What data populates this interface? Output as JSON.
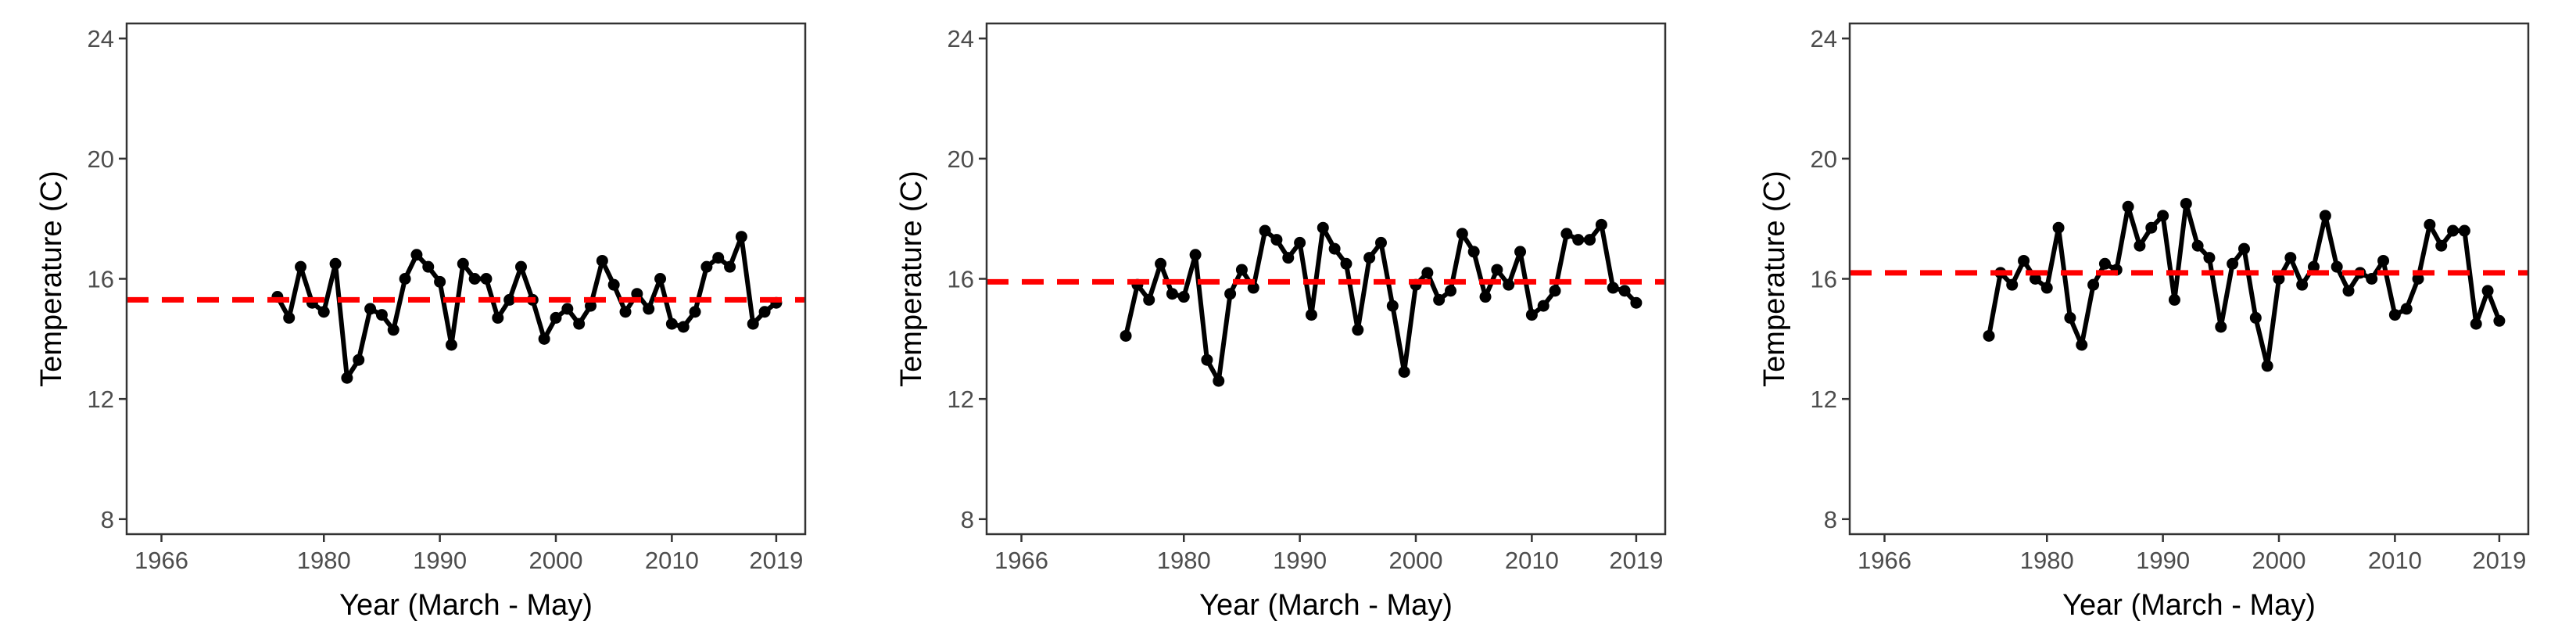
{
  "colors": {
    "line": "#000000",
    "points": "#000000",
    "mean_line": "#ff0000",
    "frame": "#333333",
    "ticks": "#333333",
    "tick_labels": "#4d4d4d",
    "background": "#ffffff"
  },
  "chart_data": [
    {
      "type": "line",
      "xlabel": "Year (March - May)",
      "ylabel": "Temperature (C)",
      "xlim": [
        1963,
        2021.5
      ],
      "ylim": [
        7.5,
        24.5
      ],
      "xticks": [
        1966,
        1980,
        1990,
        2000,
        2010,
        2019
      ],
      "yticks": [
        8,
        12,
        16,
        20,
        24
      ],
      "grid": false,
      "legend": "none",
      "mean_reference_line": 15.3,
      "series": [
        {
          "style": "solid line with points",
          "x": [
            1976,
            1977,
            1978,
            1979,
            1980,
            1981,
            1982,
            1983,
            1984,
            1985,
            1986,
            1987,
            1988,
            1989,
            1990,
            1991,
            1992,
            1993,
            1994,
            1995,
            1996,
            1997,
            1998,
            1999,
            2000,
            2001,
            2002,
            2003,
            2004,
            2005,
            2006,
            2007,
            2008,
            2009,
            2010,
            2011,
            2012,
            2013,
            2014,
            2015,
            2016,
            2017,
            2018,
            2019
          ],
          "y": [
            15.4,
            14.7,
            16.4,
            15.2,
            14.9,
            16.5,
            12.7,
            13.3,
            15.0,
            14.8,
            14.3,
            16.0,
            16.8,
            16.4,
            15.9,
            13.8,
            16.5,
            16.0,
            16.0,
            14.7,
            15.3,
            16.4,
            15.3,
            14.0,
            14.7,
            15.0,
            14.5,
            15.1,
            16.6,
            15.8,
            14.9,
            15.5,
            15.0,
            16.0,
            14.5,
            14.4,
            14.9,
            16.4,
            16.7,
            16.4,
            17.4,
            14.5,
            14.9,
            15.2
          ]
        }
      ]
    },
    {
      "type": "line",
      "xlabel": "Year (March - May)",
      "ylabel": "Temperature (C)",
      "xlim": [
        1963,
        2021.5
      ],
      "ylim": [
        7.5,
        24.5
      ],
      "xticks": [
        1966,
        1980,
        1990,
        2000,
        2010,
        2019
      ],
      "yticks": [
        8,
        12,
        16,
        20,
        24
      ],
      "grid": false,
      "legend": "none",
      "mean_reference_line": 15.9,
      "series": [
        {
          "style": "solid line with points",
          "x": [
            1975,
            1976,
            1977,
            1978,
            1979,
            1980,
            1981,
            1982,
            1983,
            1984,
            1985,
            1986,
            1987,
            1988,
            1989,
            1990,
            1991,
            1992,
            1993,
            1994,
            1995,
            1996,
            1997,
            1998,
            1999,
            2000,
            2001,
            2002,
            2003,
            2004,
            2005,
            2006,
            2007,
            2008,
            2009,
            2010,
            2011,
            2012,
            2013,
            2014,
            2015,
            2016,
            2017,
            2018,
            2019
          ],
          "y": [
            14.1,
            15.8,
            15.3,
            16.5,
            15.5,
            15.4,
            16.8,
            13.3,
            12.6,
            15.5,
            16.3,
            15.7,
            17.6,
            17.3,
            16.7,
            17.2,
            14.8,
            17.7,
            17.0,
            16.5,
            14.3,
            16.7,
            17.2,
            15.1,
            12.9,
            15.8,
            16.2,
            15.3,
            15.6,
            17.5,
            16.9,
            15.4,
            16.3,
            15.8,
            16.9,
            14.8,
            15.1,
            15.6,
            17.5,
            17.3,
            17.3,
            17.8,
            15.7,
            15.6,
            15.2
          ]
        }
      ]
    },
    {
      "type": "line",
      "xlabel": "Year (March - May)",
      "ylabel": "Temperature (C)",
      "xlim": [
        1963,
        2021.5
      ],
      "ylim": [
        7.5,
        24.5
      ],
      "xticks": [
        1966,
        1980,
        1990,
        2000,
        2010,
        2019
      ],
      "yticks": [
        8,
        12,
        16,
        20,
        24
      ],
      "grid": false,
      "legend": "none",
      "mean_reference_line": 16.2,
      "series": [
        {
          "style": "solid line with points",
          "x": [
            1975,
            1976,
            1977,
            1978,
            1979,
            1980,
            1981,
            1982,
            1983,
            1984,
            1985,
            1986,
            1987,
            1988,
            1989,
            1990,
            1991,
            1992,
            1993,
            1994,
            1995,
            1996,
            1997,
            1998,
            1999,
            2000,
            2001,
            2002,
            2003,
            2004,
            2005,
            2006,
            2007,
            2008,
            2009,
            2010,
            2011,
            2012,
            2013,
            2014,
            2015,
            2016,
            2017,
            2018,
            2019
          ],
          "y": [
            14.1,
            16.2,
            15.8,
            16.6,
            16.0,
            15.7,
            17.7,
            14.7,
            13.8,
            15.8,
            16.5,
            16.3,
            18.4,
            17.1,
            17.7,
            18.1,
            15.3,
            18.5,
            17.1,
            16.7,
            14.4,
            16.5,
            17.0,
            14.7,
            13.1,
            16.0,
            16.7,
            15.8,
            16.4,
            18.1,
            16.4,
            15.6,
            16.2,
            16.0,
            16.6,
            14.8,
            15.0,
            16.0,
            17.8,
            17.1,
            17.6,
            17.6,
            14.5,
            15.6,
            14.6
          ]
        }
      ]
    }
  ]
}
